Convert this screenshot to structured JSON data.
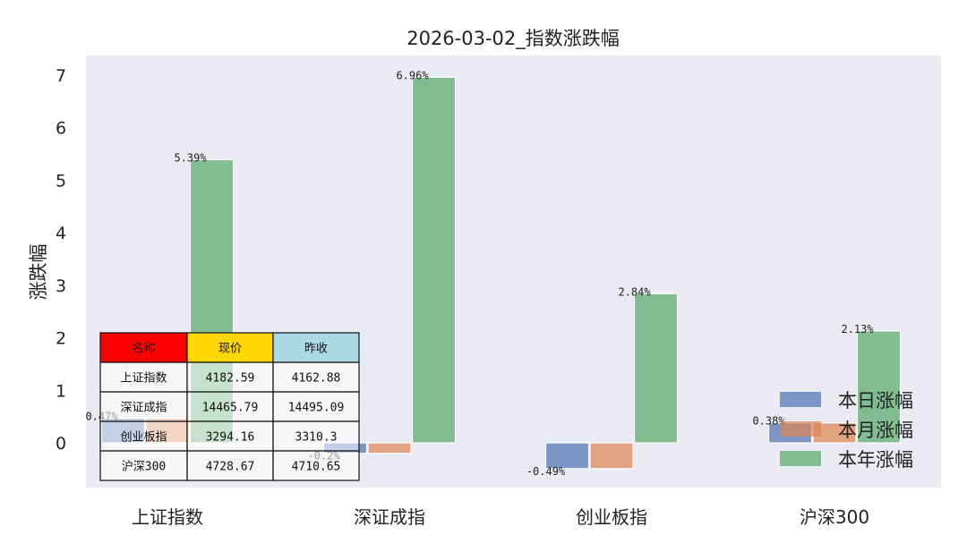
{
  "chart_data": {
    "type": "bar",
    "title": "2026-03-02_指数涨跌幅",
    "xlabel": "",
    "ylabel": "涨跌幅",
    "categories": [
      "上证指数",
      "深证成指",
      "创业板指",
      "沪深300"
    ],
    "yticks": [
      0,
      1,
      2,
      3,
      4,
      5,
      6,
      7
    ],
    "ylim": [
      -0.85,
      7.5
    ],
    "grid": false,
    "legend_position": "bottom-right",
    "series": [
      {
        "name": "本日涨幅",
        "color": "#4c72b0",
        "values": [
          0.47,
          -0.2,
          -0.49,
          0.38
        ],
        "labels": [
          "0.47%",
          "-0.2%",
          "-0.49%",
          "0.38%"
        ]
      },
      {
        "name": "本月涨幅",
        "color": "#dd8452",
        "values": [
          0.47,
          -0.2,
          -0.49,
          0.38
        ],
        "labels": [
          "",
          "",
          "",
          ""
        ]
      },
      {
        "name": "本年涨幅",
        "color": "#55a868",
        "values": [
          5.39,
          6.96,
          2.84,
          2.13
        ],
        "labels": [
          "5.39%",
          "6.96%",
          "2.84%",
          "2.13%"
        ]
      }
    ],
    "table": {
      "headers": [
        "名称",
        "现价",
        "昨收"
      ],
      "header_colors": [
        "#ff0000",
        "#ffd700",
        "#add8e6"
      ],
      "rows": [
        [
          "上证指数",
          "4182.59",
          "4162.88"
        ],
        [
          "深证成指",
          "14465.79",
          "14495.09"
        ],
        [
          "创业板指",
          "3294.16",
          "3310.3"
        ],
        [
          "沪深300",
          "4728.67",
          "4710.65"
        ]
      ]
    }
  }
}
